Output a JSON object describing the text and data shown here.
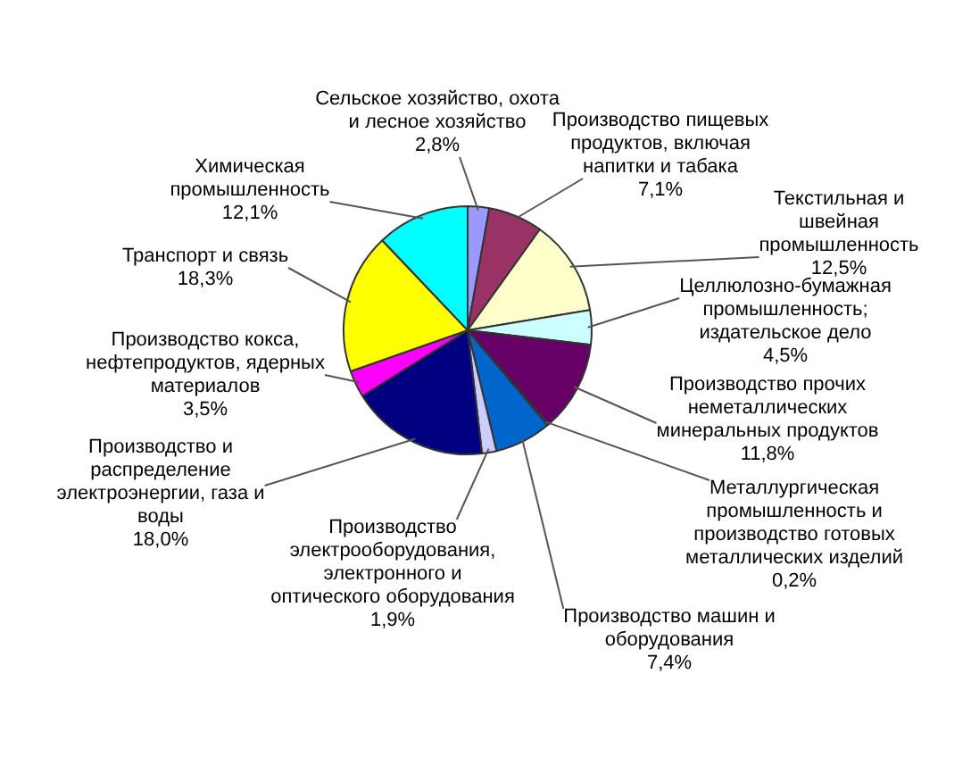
{
  "chart_data": {
    "type": "pie",
    "categories": [
      "Сельское хозяйство, охота и лесное хозяйство",
      "Производство пищевых продуктов, включая напитки и табака",
      "Текстильная и швейная промышленность",
      "Целлюлозно-бумажная промышленность; издательское дело",
      "Производство прочих неметаллических минеральных продуктов",
      "Металлургическая промышленность и производство готовых металлических изделий",
      "Производство машин и оборудования",
      "Производство электрооборудования, электронного и оптического оборудования",
      "Производство и распределение электроэнергии, газа и воды",
      "Производство кокса, нефтепродуктов, ядерных материалов",
      "Транспорт и связь",
      "Химическая промышленность"
    ],
    "values": [
      2.8,
      7.1,
      12.5,
      4.5,
      11.8,
      0.2,
      7.4,
      1.9,
      18.0,
      3.5,
      18.3,
      12.1
    ],
    "value_labels": [
      "2,8%",
      "7,1%",
      "12,5%",
      "4,5%",
      "11,8%",
      "0,2%",
      "7,4%",
      "1,9%",
      "18,0%",
      "3,5%",
      "18,3%",
      "12,1%"
    ],
    "colors": [
      "#9999ff",
      "#993366",
      "#ffffcc",
      "#ccffff",
      "#660066",
      "#ff8080",
      "#0066cc",
      "#ccccff",
      "#000080",
      "#ff00ff",
      "#ffff00",
      "#00ffff"
    ]
  }
}
